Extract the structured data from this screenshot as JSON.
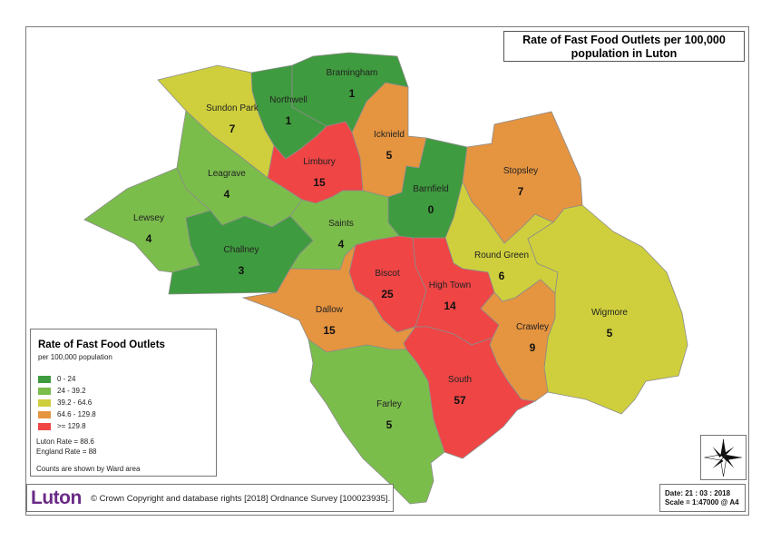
{
  "title": {
    "line1": "Rate of Fast Food Outlets per 100,000",
    "line2": "population in Luton"
  },
  "colors": {
    "class1": "#3f9b3f",
    "class2": "#7bbd4b",
    "class3": "#cfcf3d",
    "class4": "#e59440",
    "class5": "#f04545",
    "border": "#8c8c8c"
  },
  "wards": [
    {
      "name": "Bramingham",
      "count": "1",
      "class": 1
    },
    {
      "name": "Northwell",
      "count": "1",
      "class": 1
    },
    {
      "name": "Sundon Park",
      "count": "7",
      "class": 3
    },
    {
      "name": "Icknield",
      "count": "5",
      "class": 4
    },
    {
      "name": "Limbury",
      "count": "15",
      "class": 5
    },
    {
      "name": "Leagrave",
      "count": "4",
      "class": 2
    },
    {
      "name": "Barnfield",
      "count": "0",
      "class": 1
    },
    {
      "name": "Stopsley",
      "count": "7",
      "class": 4
    },
    {
      "name": "Lewsey",
      "count": "4",
      "class": 2
    },
    {
      "name": "Saints",
      "count": "4",
      "class": 2
    },
    {
      "name": "Challney",
      "count": "3",
      "class": 1
    },
    {
      "name": "Round Green",
      "count": "6",
      "class": 3
    },
    {
      "name": "Biscot",
      "count": "25",
      "class": 5
    },
    {
      "name": "High Town",
      "count": "14",
      "class": 5
    },
    {
      "name": "Dallow",
      "count": "15",
      "class": 4
    },
    {
      "name": "Wigmore",
      "count": "5",
      "class": 3
    },
    {
      "name": "Crawley",
      "count": "9",
      "class": 4
    },
    {
      "name": "South",
      "count": "57",
      "class": 5
    },
    {
      "name": "Farley",
      "count": "5",
      "class": 2
    }
  ],
  "legend": {
    "title": "Rate of Fast Food Outlets",
    "subtitle": "per 100,000 population",
    "classes": [
      {
        "label": "0 - 24",
        "color": "#3f9b3f"
      },
      {
        "label": "24 - 39.2",
        "color": "#7bbd4b"
      },
      {
        "label": "39.2 - 64.6",
        "color": "#cfcf3d"
      },
      {
        "label": "64.6 - 129.8",
        "color": "#e59440"
      },
      {
        "label": ">= 129.8",
        "color": "#f04545"
      }
    ],
    "luton_rate": "Luton Rate = 88.6",
    "england_rate": "England Rate = 88",
    "note": "Counts are shown by Ward area"
  },
  "credit": {
    "logo": "Luton",
    "text": "© Crown Copyright and database rights [2018] Ordnance Survey [100023935]."
  },
  "footer": {
    "date": "Date: 21 : 03 : 2018",
    "scale": "Scale = 1:47000 @ A4"
  },
  "compass": {
    "icon": "north-arrow-icon"
  }
}
